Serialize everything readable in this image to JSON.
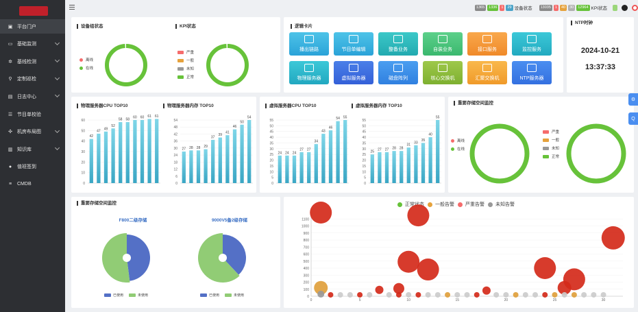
{
  "sidebar": {
    "items": [
      {
        "label": "平台门户",
        "icon": "portal-icon",
        "has_caret": false,
        "active": true
      },
      {
        "label": "基础监测",
        "icon": "monitor-icon",
        "has_caret": true,
        "active": false
      },
      {
        "label": "基线检测",
        "icon": "gear-icon",
        "has_caret": true,
        "active": false
      },
      {
        "label": "定制巡检",
        "icon": "inspect-icon",
        "has_caret": true,
        "active": false
      },
      {
        "label": "日志中心",
        "icon": "log-icon",
        "has_caret": true,
        "active": false
      },
      {
        "label": "节目单校验",
        "icon": "checklist-icon",
        "has_caret": false,
        "active": false
      },
      {
        "label": "机房布局图",
        "icon": "layout-icon",
        "has_caret": true,
        "active": false
      },
      {
        "label": "知识库",
        "icon": "book-icon",
        "has_caret": true,
        "active": false
      },
      {
        "label": "值班签到",
        "icon": "user-icon",
        "has_caret": false,
        "active": false
      },
      {
        "label": "CMDB",
        "icon": "sliders-icon",
        "has_caret": false,
        "active": false
      }
    ]
  },
  "topbar": {
    "device_status": {
      "label": "设备状态",
      "counts": [
        {
          "value": "1365",
          "color": "#8a8a8a"
        },
        {
          "value": "1336",
          "color": "#67c23a"
        },
        {
          "value": "1",
          "color": "#f56c6c"
        },
        {
          "value": "29",
          "color": "#4aa3c8"
        }
      ]
    },
    "kpi_status": {
      "label": "KPI状态",
      "counts": [
        {
          "value": "13035",
          "color": "#8a8a8a"
        },
        {
          "value": "1",
          "color": "#f56c6c"
        },
        {
          "value": "40",
          "color": "#e6a23c"
        },
        {
          "value": "30",
          "color": "#b0b0b0"
        },
        {
          "value": "12964",
          "color": "#67c23a"
        }
      ]
    }
  },
  "device_group": {
    "title": "设备组状态",
    "legend": [
      {
        "label": "离线",
        "color": "#f56c6c"
      },
      {
        "label": "在线",
        "color": "#67c23a"
      }
    ],
    "online_fraction": 0.99
  },
  "kpi": {
    "title": "KPI状态",
    "legend": [
      {
        "label": "严重",
        "color": "#f56c6c"
      },
      {
        "label": "一般",
        "color": "#e6a23c"
      },
      {
        "label": "未知",
        "color": "#999999"
      },
      {
        "label": "正常",
        "color": "#67c23a"
      }
    ],
    "normal_fraction": 0.99
  },
  "logic_cards": {
    "title": "逻辑卡片",
    "items": [
      {
        "label": "播出链路",
        "color1": "#4ec3e8",
        "color2": "#2aa3d8"
      },
      {
        "label": "节目单编辑",
        "color1": "#4ec3e8",
        "color2": "#2aa3d8"
      },
      {
        "label": "整备业务",
        "color1": "#3cc8c8",
        "color2": "#22aab0"
      },
      {
        "label": "自装业务",
        "color1": "#5dd08a",
        "color2": "#3bb86e"
      },
      {
        "label": "接口服务",
        "color1": "#f9a84c",
        "color2": "#f08a2a"
      },
      {
        "label": "监控服务",
        "color1": "#3cc8d8",
        "color2": "#22aac0"
      },
      {
        "label": "物理服务器",
        "color1": "#3cc8d8",
        "color2": "#22a8c0"
      },
      {
        "label": "虚拟服务器",
        "color1": "#4a7fe8",
        "color2": "#3460d8"
      },
      {
        "label": "磁盘阵列",
        "color1": "#4a9ef0",
        "color2": "#3080e0"
      },
      {
        "label": "核心交换机",
        "color1": "#9ec84a",
        "color2": "#7eb030"
      },
      {
        "label": "汇聚交换机",
        "color1": "#f9b84c",
        "color2": "#f09a2a"
      },
      {
        "label": "NTP服务器",
        "color1": "#4a8ef0",
        "color2": "#3470e0"
      }
    ]
  },
  "ntp": {
    "title": "NTP时钟",
    "date": "2024-10-21",
    "time": "13:37:33"
  },
  "phys_cpu": {
    "title": "物理服务器CPU TOP10",
    "chart_data": {
      "type": "bar",
      "values": [
        42,
        47,
        49,
        52,
        58,
        58,
        60,
        60,
        61,
        61
      ],
      "ticks": [
        0,
        10,
        20,
        30,
        40,
        50,
        60
      ],
      "ylim": [
        0,
        60
      ]
    }
  },
  "phys_mem": {
    "title": "物理服务器内存 TOP10",
    "chart_data": {
      "type": "bar",
      "values": [
        27,
        28,
        28,
        29,
        37,
        39,
        41,
        46,
        50,
        54
      ],
      "ticks": [
        0,
        6,
        12,
        18,
        24,
        30,
        36,
        42,
        48,
        54
      ],
      "ylim": [
        0,
        54
      ]
    }
  },
  "virt_cpu": {
    "title": "虚拟服务器CPU TOP10",
    "chart_data": {
      "type": "bar",
      "values": [
        24,
        24,
        24,
        27,
        27,
        34,
        43,
        46,
        54,
        55
      ],
      "ticks": [
        0,
        5,
        10,
        15,
        20,
        25,
        30,
        35,
        40,
        45,
        50,
        55
      ],
      "ylim": [
        0,
        55
      ]
    }
  },
  "virt_mem": {
    "title": "虚拟服务器内存 TOP10",
    "chart_data": {
      "type": "bar",
      "values": [
        25,
        27,
        27,
        28,
        28,
        31,
        33,
        35,
        40,
        55
      ],
      "ticks": [
        0,
        5,
        10,
        15,
        20,
        25,
        30,
        35,
        40,
        45,
        50,
        55
      ],
      "ylim": [
        0,
        55
      ]
    }
  },
  "storage_space": {
    "title": "重要存储空间监控",
    "legend_left": [
      {
        "label": "离线",
        "color": "#f56c6c"
      },
      {
        "label": "在线",
        "color": "#67c23a"
      }
    ],
    "legend_right": [
      {
        "label": "严重",
        "color": "#f56c6c"
      },
      {
        "label": "一般",
        "color": "#e6a23c"
      },
      {
        "label": "未知",
        "color": "#999999"
      },
      {
        "label": "正常",
        "color": "#67c23a"
      }
    ]
  },
  "storage_pies": {
    "title": "重要存储空间监控",
    "used_color": "#5470c6",
    "free_color": "#91cc75",
    "legend": [
      "已使用",
      "未使用"
    ],
    "chart_data": [
      {
        "type": "pie",
        "title": "F800二级存储",
        "used": 48,
        "free": 52
      },
      {
        "type": "pie",
        "title": "9000V5备2级存储",
        "used": 38,
        "free": 62
      }
    ]
  },
  "alarm_scatter": {
    "legend": [
      {
        "label": "正常状态",
        "color": "#67c23a"
      },
      {
        "label": "一般告警",
        "color": "#e6a23c"
      },
      {
        "label": "严重告警",
        "color": "#f56c6c"
      },
      {
        "label": "未知告警",
        "color": "#999999"
      }
    ],
    "chart_data": {
      "type": "scatter",
      "xlim": [
        0,
        32
      ],
      "ylim": [
        0,
        1200
      ],
      "xticks": [
        0,
        5,
        10,
        15,
        20,
        25,
        30
      ],
      "yticks": [
        0,
        100,
        200,
        300,
        400,
        500,
        600,
        700,
        800,
        900,
        1000,
        1100
      ],
      "points": [
        {
          "x": 1,
          "y": 1190,
          "r": 16,
          "c": "#d42a1a"
        },
        {
          "x": 11,
          "y": 1150,
          "r": 16,
          "c": "#d42a1a"
        },
        {
          "x": 31,
          "y": 830,
          "r": 17,
          "c": "#d42a1a"
        },
        {
          "x": 10,
          "y": 490,
          "r": 16,
          "c": "#d42a1a"
        },
        {
          "x": 12,
          "y": 380,
          "r": 16,
          "c": "#d42a1a"
        },
        {
          "x": 24,
          "y": 400,
          "r": 16,
          "c": "#d42a1a"
        },
        {
          "x": 27,
          "y": 240,
          "r": 16,
          "c": "#d42a1a"
        },
        {
          "x": 26,
          "y": 120,
          "r": 10,
          "c": "#d42a1a"
        },
        {
          "x": 9,
          "y": 110,
          "r": 8,
          "c": "#d42a1a"
        },
        {
          "x": 7,
          "y": 90,
          "r": 6,
          "c": "#d42a1a"
        },
        {
          "x": 18,
          "y": 80,
          "r": 6,
          "c": "#d42a1a"
        },
        {
          "x": 1,
          "y": 120,
          "r": 10,
          "c": "#e0a03c"
        },
        {
          "x": 1,
          "y": 30,
          "r": 5,
          "c": "#999999"
        },
        {
          "x": 2,
          "y": 20,
          "r": 4,
          "c": "#d42a1a"
        },
        {
          "x": 3,
          "y": 20,
          "r": 4,
          "c": "#cccccc"
        },
        {
          "x": 4,
          "y": 20,
          "r": 4,
          "c": "#cccccc"
        },
        {
          "x": 5,
          "y": 20,
          "r": 4,
          "c": "#d42a1a"
        },
        {
          "x": 6,
          "y": 20,
          "r": 4,
          "c": "#cccccc"
        },
        {
          "x": 8,
          "y": 20,
          "r": 4,
          "c": "#cccccc"
        },
        {
          "x": 9,
          "y": 20,
          "r": 4,
          "c": "#d42a1a"
        },
        {
          "x": 10,
          "y": 20,
          "r": 4,
          "c": "#cccccc"
        },
        {
          "x": 11,
          "y": 20,
          "r": 4,
          "c": "#d42a1a"
        },
        {
          "x": 12,
          "y": 20,
          "r": 4,
          "c": "#cccccc"
        },
        {
          "x": 13,
          "y": 20,
          "r": 4,
          "c": "#cccccc"
        },
        {
          "x": 14,
          "y": 20,
          "r": 4,
          "c": "#e0a03c"
        },
        {
          "x": 15,
          "y": 20,
          "r": 4,
          "c": "#cccccc"
        },
        {
          "x": 16,
          "y": 20,
          "r": 4,
          "c": "#cccccc"
        },
        {
          "x": 17,
          "y": 20,
          "r": 4,
          "c": "#d42a1a"
        },
        {
          "x": 19,
          "y": 20,
          "r": 4,
          "c": "#cccccc"
        },
        {
          "x": 20,
          "y": 20,
          "r": 4,
          "c": "#cccccc"
        },
        {
          "x": 21,
          "y": 20,
          "r": 4,
          "c": "#e0a03c"
        },
        {
          "x": 22,
          "y": 20,
          "r": 4,
          "c": "#cccccc"
        },
        {
          "x": 23,
          "y": 20,
          "r": 4,
          "c": "#cccccc"
        },
        {
          "x": 24,
          "y": 20,
          "r": 4,
          "c": "#d42a1a"
        },
        {
          "x": 25,
          "y": 20,
          "r": 4,
          "c": "#e0a03c"
        },
        {
          "x": 26,
          "y": 20,
          "r": 4,
          "c": "#cccccc"
        },
        {
          "x": 27,
          "y": 20,
          "r": 4,
          "c": "#e0a03c"
        },
        {
          "x": 28,
          "y": 20,
          "r": 4,
          "c": "#cccccc"
        },
        {
          "x": 29,
          "y": 20,
          "r": 4,
          "c": "#cccccc"
        },
        {
          "x": 30,
          "y": 20,
          "r": 4,
          "c": "#cccccc"
        }
      ]
    }
  },
  "float_buttons": [
    "⚙",
    "Q"
  ]
}
